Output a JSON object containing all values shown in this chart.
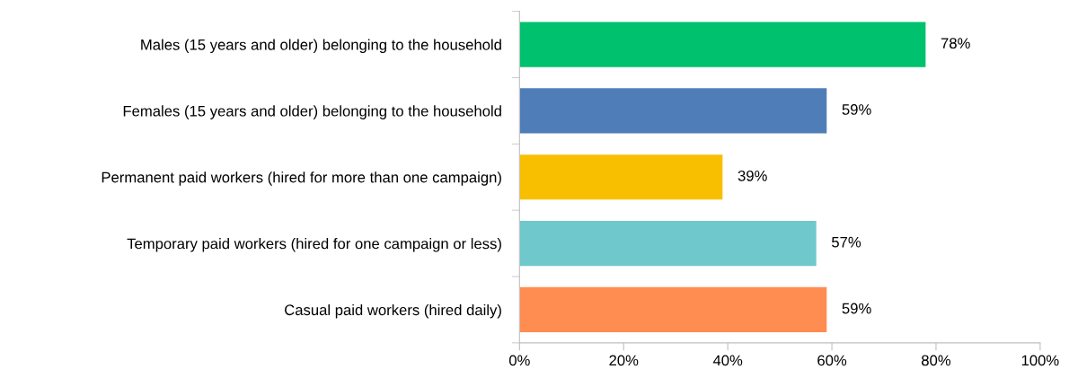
{
  "chart_data": {
    "type": "bar",
    "orientation": "horizontal",
    "categories": [
      "Males (15 years and older) belonging to the household",
      "Females (15 years and older) belonging to the household",
      "Permanent paid workers (hired for more than one campaign)",
      "Temporary paid workers (hired for one campaign or less)",
      "Casual paid workers (hired daily)"
    ],
    "values": [
      78,
      59,
      39,
      57,
      59
    ],
    "colors": [
      "#00c16e",
      "#4f7db8",
      "#f8bf00",
      "#6fc8cc",
      "#ff8c50"
    ],
    "value_labels": [
      "78%",
      "59%",
      "39%",
      "57%",
      "59%"
    ],
    "xlim": [
      0,
      100
    ],
    "xticks": [
      {
        "value": 0,
        "label": "0%"
      },
      {
        "value": 20,
        "label": "20%"
      },
      {
        "value": 40,
        "label": "40%"
      },
      {
        "value": 60,
        "label": "60%"
      },
      {
        "value": 80,
        "label": "80%"
      },
      {
        "value": 100,
        "label": "100%"
      }
    ],
    "grid": false,
    "legend": false
  }
}
